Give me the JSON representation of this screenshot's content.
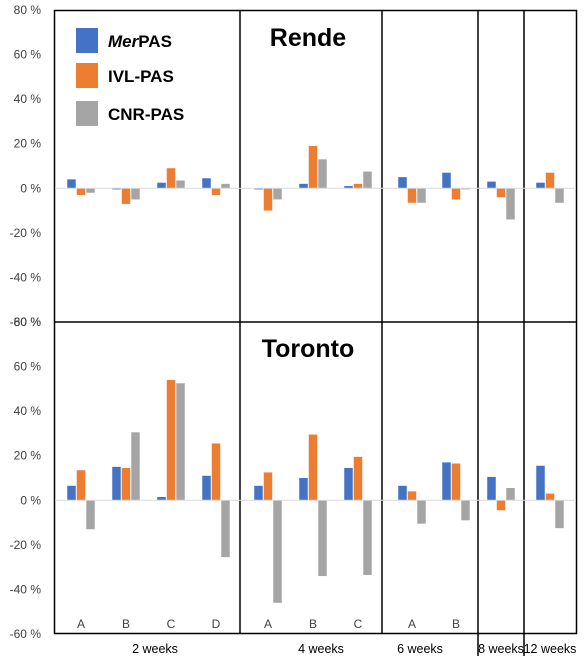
{
  "chart_data": {
    "type": "bar",
    "legend": {
      "position": "top-left",
      "entries": [
        {
          "italic": "Mer",
          "rest": "PAS",
          "color": "#4472C4"
        },
        {
          "italic": "",
          "rest": "IVL-PAS",
          "color": "#ED7D31"
        },
        {
          "italic": "",
          "rest": "CNR-PAS",
          "color": "#A5A5A5"
        }
      ]
    },
    "series_colors": [
      "#4472C4",
      "#ED7D31",
      "#A5A5A5"
    ],
    "groups": [
      {
        "label": "2 weeks",
        "categories": [
          "A",
          "B",
          "C",
          "D"
        ]
      },
      {
        "label": "4 weeks",
        "categories": [
          "A",
          "B",
          "C"
        ]
      },
      {
        "label": "6 weeks",
        "categories": [
          "A",
          "B"
        ]
      },
      {
        "label": "8 weeks",
        "categories": [
          ""
        ]
      },
      {
        "label": "12 weeks",
        "categories": [
          ""
        ]
      }
    ],
    "panels": [
      {
        "title": "Rende",
        "ylim": [
          -60,
          80
        ],
        "yticks": [
          "80 %",
          "60 %",
          "40 %",
          "20 %",
          "0 %",
          "-20 %",
          "-40 %",
          "-60 %"
        ],
        "values": [
          [
            4,
            -3,
            -2
          ],
          [
            -0.5,
            -7,
            -5
          ],
          [
            2.5,
            9,
            3.5
          ],
          [
            4.5,
            -3,
            2
          ],
          [
            -0.5,
            -10,
            -5
          ],
          [
            2,
            19,
            13
          ],
          [
            1,
            2,
            7.5
          ],
          [
            5,
            -6.5,
            -6.5
          ],
          [
            7,
            -5,
            -0.5
          ],
          [
            3,
            -4,
            -14
          ],
          [
            2.5,
            7,
            -6.5
          ]
        ]
      },
      {
        "title": "Toronto",
        "ylim": [
          -60,
          80
        ],
        "yticks": [
          "80 %",
          "60 %",
          "40 %",
          "20 %",
          "0 %",
          "-20 %",
          "-40 %",
          "-60 %"
        ],
        "values": [
          [
            6.5,
            13.5,
            -13
          ],
          [
            15,
            14.5,
            30.5
          ],
          [
            1.5,
            54,
            52.5
          ],
          [
            11,
            25.5,
            -25.5
          ],
          [
            6.5,
            12.5,
            -46
          ],
          [
            10,
            29.5,
            -34
          ],
          [
            14.5,
            19.5,
            -33.5
          ],
          [
            6.5,
            4,
            -10.5
          ],
          [
            17,
            16.5,
            -9
          ],
          [
            10.5,
            -4.5,
            5.5
          ],
          [
            15.5,
            3,
            -12.5
          ]
        ]
      }
    ]
  }
}
